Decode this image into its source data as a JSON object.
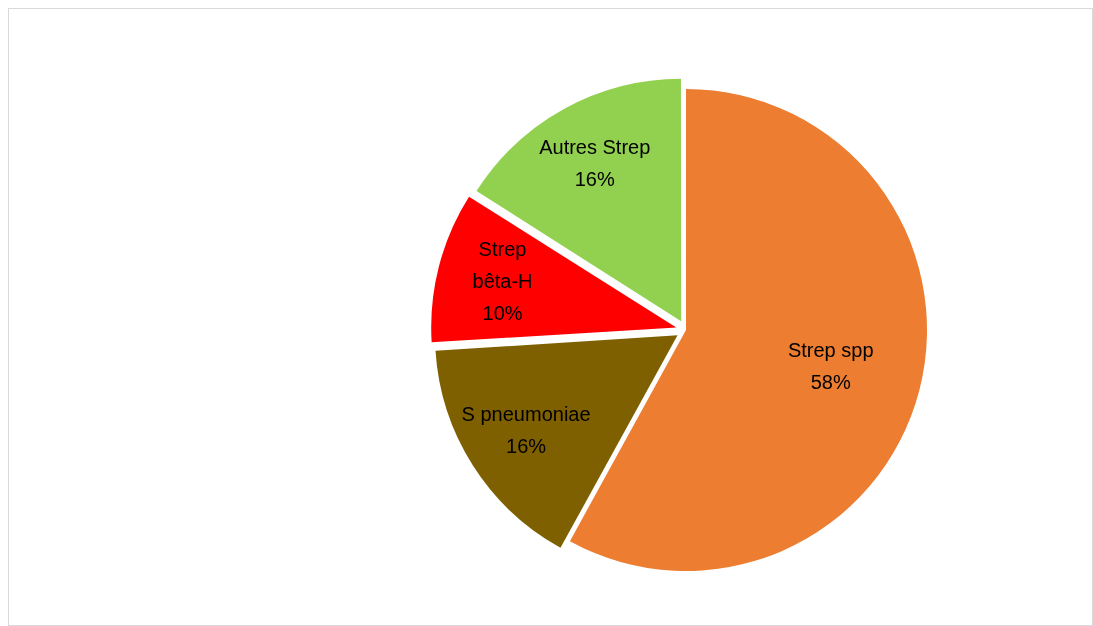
{
  "chart_data": {
    "type": "pie",
    "categories": [
      "Strep spp",
      "S pneumoniae",
      "Strep bêta-H",
      "Autres Strep"
    ],
    "values": [
      58,
      16,
      10,
      16
    ],
    "colors": [
      "#ed7d31",
      "#7f6000",
      "#ff0000",
      "#92d050"
    ],
    "value_labels": [
      "58%",
      "16%",
      "10%",
      "16%"
    ],
    "legend": false
  }
}
